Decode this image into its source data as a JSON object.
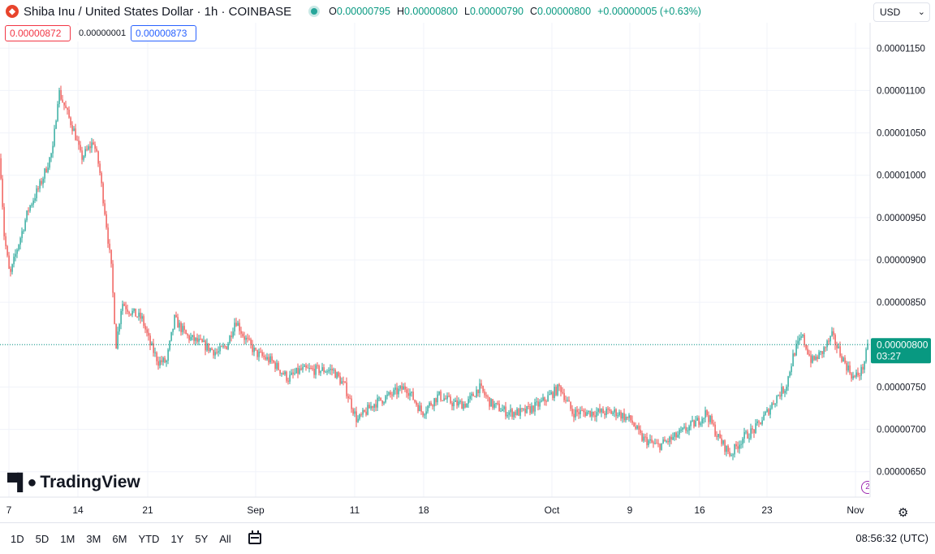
{
  "header": {
    "symbol_icon": "shiba-inu-icon",
    "title": "Shiba Inu / United States Dollar · 1h · COINBASE",
    "ohlc": [
      {
        "key": "O",
        "value": "0.00000795"
      },
      {
        "key": "H",
        "value": "0.00000800"
      },
      {
        "key": "L",
        "value": "0.00000790"
      },
      {
        "key": "C",
        "value": "0.00000800"
      },
      {
        "key": "",
        "value": "+0.00000005 (+0.63%)"
      }
    ],
    "currency": "USD"
  },
  "trade": {
    "sell": "0.00000872",
    "spread": "0.00000001",
    "buy": "0.00000873"
  },
  "branding": {
    "logo_text": "TradingView"
  },
  "bottom": {
    "ranges": [
      "1D",
      "5D",
      "1M",
      "3M",
      "6M",
      "YTD",
      "1Y",
      "5Y",
      "All"
    ],
    "clock": "08:56:32 (UTC)"
  },
  "chart_data": {
    "type": "candlestick",
    "x_tick_labels": [
      "7",
      "14",
      "21",
      "Sep",
      "11",
      "18",
      "Oct",
      "9",
      "16",
      "23",
      "Nov"
    ],
    "y_tick_labels": [
      "0.00001150",
      "0.00001100",
      "0.00001050",
      "0.00001000",
      "0.00000950",
      "0.00000900",
      "0.00000850",
      "0.00000800",
      "0.00000750",
      "0.00000700",
      "0.00000650"
    ],
    "ylim": [
      6.2e-06,
      1.18e-05
    ],
    "y_ticks": [
      1.15e-05,
      1.1e-05,
      1.05e-05,
      1e-05,
      9.5e-06,
      9e-06,
      8.5e-06,
      8e-06,
      7.5e-06,
      7e-06,
      6.5e-06
    ],
    "grid": true,
    "last_price": "0.00000800",
    "last_price_value": 8e-06,
    "countdown": "03:27",
    "colors": {
      "up": "#26a69a",
      "down": "#ef5350",
      "last_price_bg": "#089981",
      "grid": "#f0f3fa"
    },
    "path_anchors": [
      [
        0,
        1.02e-05
      ],
      [
        5,
        9.3e-06
      ],
      [
        12,
        8.8e-06
      ],
      [
        20,
        9.1e-06
      ],
      [
        35,
        9.6e-06
      ],
      [
        50,
        9.9e-06
      ],
      [
        65,
        1.03e-05
      ],
      [
        72,
        1.1e-05
      ],
      [
        80,
        1.08e-05
      ],
      [
        92,
        1.05e-05
      ],
      [
        100,
        1.02e-05
      ],
      [
        108,
        1.03e-05
      ],
      [
        115,
        1.04e-05
      ],
      [
        122,
        1.01e-05
      ],
      [
        130,
        9.5e-06
      ],
      [
        137,
        8.9e-06
      ],
      [
        143,
        8e-06
      ],
      [
        150,
        8.5e-06
      ],
      [
        160,
        8.4e-06
      ],
      [
        175,
        8.3e-06
      ],
      [
        185,
        8e-06
      ],
      [
        195,
        7.8e-06
      ],
      [
        205,
        7.8e-06
      ],
      [
        215,
        8.3e-06
      ],
      [
        230,
        8.1e-06
      ],
      [
        250,
        8e-06
      ],
      [
        268,
        7.9e-06
      ],
      [
        280,
        8e-06
      ],
      [
        290,
        8.3e-06
      ],
      [
        300,
        8.1e-06
      ],
      [
        315,
        7.9e-06
      ],
      [
        335,
        7.8e-06
      ],
      [
        355,
        7.6e-06
      ],
      [
        370,
        7.7e-06
      ],
      [
        390,
        7.7e-06
      ],
      [
        410,
        7.7e-06
      ],
      [
        425,
        7.5e-06
      ],
      [
        440,
        7.1e-06
      ],
      [
        460,
        7.3e-06
      ],
      [
        480,
        7.4e-06
      ],
      [
        500,
        7.5e-06
      ],
      [
        520,
        7.2e-06
      ],
      [
        540,
        7.4e-06
      ],
      [
        560,
        7.3e-06
      ],
      [
        575,
        7.3e-06
      ],
      [
        590,
        7.5e-06
      ],
      [
        605,
        7.3e-06
      ],
      [
        625,
        7.2e-06
      ],
      [
        645,
        7.2e-06
      ],
      [
        665,
        7.3e-06
      ],
      [
        690,
        7.5e-06
      ],
      [
        705,
        7.2e-06
      ],
      [
        720,
        7.2e-06
      ],
      [
        740,
        7.2e-06
      ],
      [
        760,
        7.2e-06
      ],
      [
        778,
        7.1e-06
      ],
      [
        790,
        6.9e-06
      ],
      [
        810,
        6.8e-06
      ],
      [
        830,
        6.9e-06
      ],
      [
        845,
        7e-06
      ],
      [
        860,
        7.1e-06
      ],
      [
        870,
        7.2e-06
      ],
      [
        885,
        6.9e-06
      ],
      [
        900,
        6.7e-06
      ],
      [
        915,
        6.9e-06
      ],
      [
        930,
        7e-06
      ],
      [
        945,
        7.2e-06
      ],
      [
        958,
        7.4e-06
      ],
      [
        968,
        7.5e-06
      ],
      [
        978,
        7.9e-06
      ],
      [
        988,
        8.1e-06
      ],
      [
        1000,
        7.8e-06
      ],
      [
        1012,
        7.9e-06
      ],
      [
        1025,
        8.1e-06
      ],
      [
        1040,
        7.8e-06
      ],
      [
        1052,
        7.6e-06
      ],
      [
        1062,
        7.7e-06
      ],
      [
        1070,
        8e-06
      ]
    ]
  }
}
